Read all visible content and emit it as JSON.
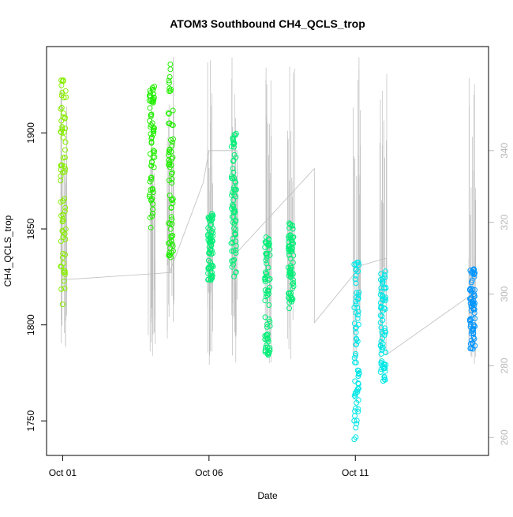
{
  "chart_data": {
    "type": "scatter",
    "title": "ATOM3 Southbound CH4_QCLS_trop",
    "xlabel": "Date",
    "ylabel": "CH4_QCLS_trop",
    "x_ticks": [
      "Oct 01",
      "Oct 06",
      "Oct 11"
    ],
    "x_tick_values": [
      1,
      6,
      11
    ],
    "xlim": [
      0.45,
      15.55
    ],
    "y_ticks": [
      1750,
      1800,
      1850,
      1900
    ],
    "ylim": [
      1732,
      1945
    ],
    "y2_ticks": [
      260,
      280,
      300,
      320,
      340
    ],
    "y2lim": [
      255,
      369
    ],
    "grid": false,
    "colors": {
      "lime": "#88ee00",
      "green": "#22ee00",
      "springgreen": "#00ee77",
      "aqua": "#00e6e6",
      "blue": "#0095ff",
      "secondary_line": "#bdbdbd",
      "axis": "#000000",
      "right_axis": "#bdbdbd"
    },
    "series": [
      {
        "color_key": "lime",
        "x": 1.02,
        "y_min": 1810,
        "y_max": 1932
      },
      {
        "color_key": "green",
        "x": 4.05,
        "y_min": 1850,
        "y_max": 1925
      },
      {
        "color_key": "green",
        "x": 4.7,
        "y_min": 1835,
        "y_max": 1938
      },
      {
        "color_key": "springgreen",
        "x": 6.05,
        "y_min": 1823,
        "y_max": 1858
      },
      {
        "color_key": "springgreen",
        "x": 6.85,
        "y_min": 1825,
        "y_max": 1902
      },
      {
        "color_key": "springgreen",
        "x": 8.0,
        "y_min": 1783,
        "y_max": 1848
      },
      {
        "color_key": "springgreen",
        "x": 8.8,
        "y_min": 1808,
        "y_max": 1853
      },
      {
        "color_key": "aqua",
        "x": 11.05,
        "y_min": 1740,
        "y_max": 1833
      },
      {
        "color_key": "aqua",
        "x": 11.95,
        "y_min": 1769,
        "y_max": 1830
      },
      {
        "color_key": "blue",
        "x": 15.0,
        "y_min": 1787,
        "y_max": 1830
      }
    ],
    "secondary_series": {
      "axis": "right",
      "points": [
        [
          1.02,
          304
        ],
        [
          4.7,
          306
        ],
        [
          4.7,
          307
        ],
        [
          5.8,
          331
        ],
        [
          6.0,
          340
        ],
        [
          6.95,
          340
        ],
        [
          7.0,
          312
        ],
        [
          9.6,
          335
        ],
        [
          9.6,
          292
        ],
        [
          11.2,
          308
        ],
        [
          12.05,
          310
        ],
        [
          12.05,
          283
        ],
        [
          15.0,
          300
        ]
      ]
    }
  }
}
